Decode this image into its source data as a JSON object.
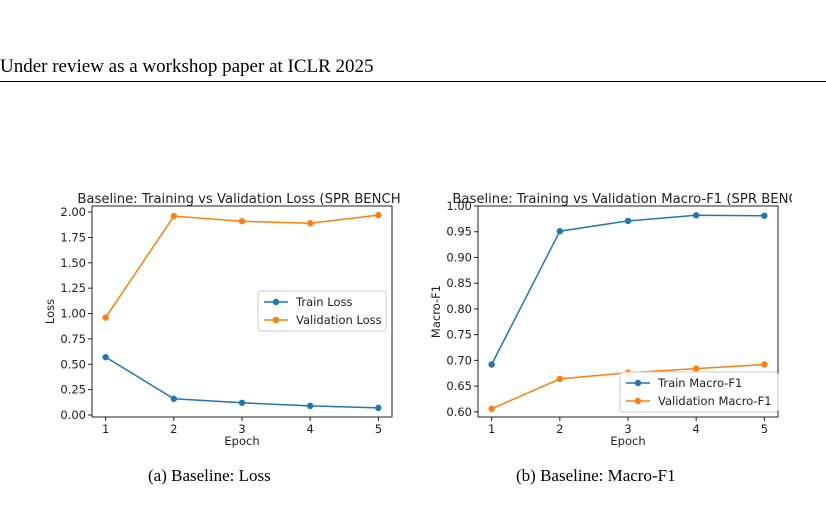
{
  "header": {
    "text": "Under review as a workshop paper at ICLR 2025"
  },
  "captions": {
    "a": "(a) Baseline: Loss",
    "b": "(b) Baseline: Macro-F1"
  },
  "colors": {
    "train": "#1f77b4",
    "validation": "#ff7f0e"
  },
  "chart_data": [
    {
      "type": "line",
      "title": "Baseline: Training vs Validation Loss (SPR BENCH",
      "xlabel": "Epoch",
      "ylabel": "Loss",
      "x": [
        1,
        2,
        3,
        4,
        5
      ],
      "xticks": [
        "1",
        "2",
        "3",
        "4",
        "5"
      ],
      "yticks": [
        "0.00",
        "0.25",
        "0.50",
        "0.75",
        "1.00",
        "1.25",
        "1.50",
        "1.75",
        "2.00"
      ],
      "ylim": [
        -0.02,
        2.06
      ],
      "series": [
        {
          "name": "Train Loss",
          "values": [
            0.57,
            0.16,
            0.12,
            0.09,
            0.07
          ]
        },
        {
          "name": "Validation Loss",
          "values": [
            0.96,
            1.96,
            1.91,
            1.89,
            1.97
          ]
        }
      ],
      "legend": "center-right",
      "grid": false
    },
    {
      "type": "line",
      "title": "Baseline: Training vs Validation Macro-F1 (SPR BENC",
      "xlabel": "Epoch",
      "ylabel": "Macro-F1",
      "x": [
        1,
        2,
        3,
        4,
        5
      ],
      "xticks": [
        "1",
        "2",
        "3",
        "4",
        "5"
      ],
      "yticks": [
        "0.60",
        "0.65",
        "0.70",
        "0.75",
        "0.80",
        "0.85",
        "0.90",
        "0.95",
        "1.00"
      ],
      "ylim": [
        0.59,
        1.0
      ],
      "series": [
        {
          "name": "Train Macro-F1",
          "values": [
            0.692,
            0.951,
            0.971,
            0.982,
            0.981
          ]
        },
        {
          "name": "Validation Macro-F1",
          "values": [
            0.606,
            0.664,
            0.676,
            0.684,
            0.692
          ]
        }
      ],
      "legend": "lower-right",
      "grid": false
    }
  ]
}
